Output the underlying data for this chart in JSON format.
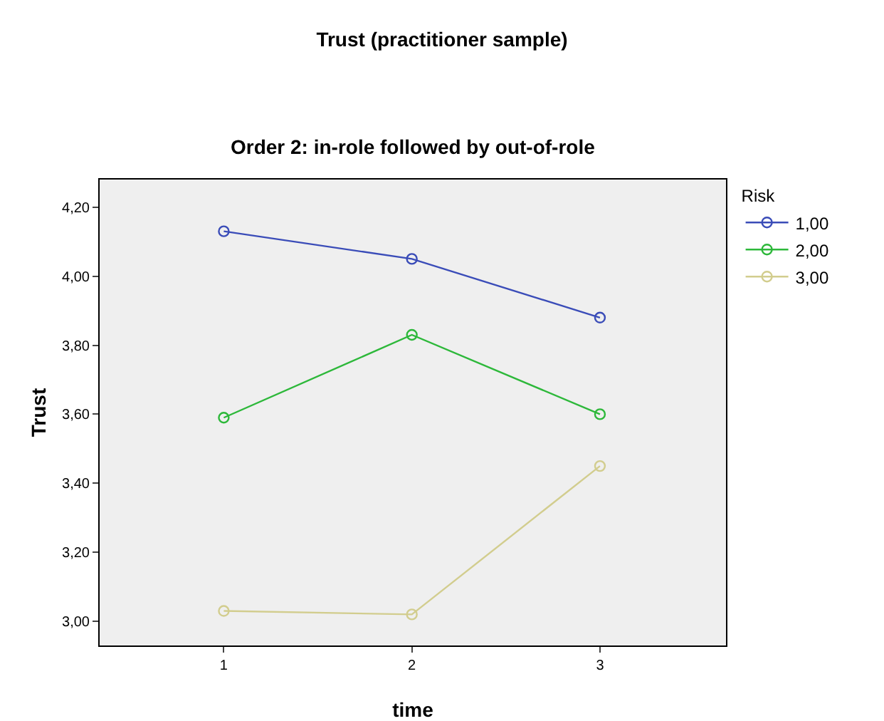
{
  "chart_data": {
    "type": "line",
    "title": "Trust (practitioner sample)",
    "subtitle": "Order 2: in-role followed by out-of-role",
    "xlabel": "time",
    "ylabel": "Trust",
    "legend_title": "Risk",
    "x": [
      1,
      2,
      3
    ],
    "series": [
      {
        "name": "1,00",
        "color": "#3a4cb8",
        "values": [
          4.13,
          4.05,
          3.88
        ]
      },
      {
        "name": "2,00",
        "color": "#2db83a",
        "values": [
          3.59,
          3.83,
          3.6
        ]
      },
      {
        "name": "3,00",
        "color": "#d2cd8e",
        "values": [
          3.03,
          3.02,
          3.45
        ]
      }
    ],
    "xlim": [
      0.34,
      3.67
    ],
    "xticks": [
      1,
      2,
      3
    ],
    "ylim": [
      2.93,
      4.28
    ],
    "yticks": [
      {
        "value": 3.0,
        "label": "3,00"
      },
      {
        "value": 3.2,
        "label": "3,20"
      },
      {
        "value": 3.4,
        "label": "3,40"
      },
      {
        "value": 3.6,
        "label": "3,60"
      },
      {
        "value": 3.8,
        "label": "3,80"
      },
      {
        "value": 4.0,
        "label": "4,00"
      },
      {
        "value": 4.2,
        "label": "4,20"
      }
    ],
    "grid": false,
    "legend": "top right",
    "marker": "circle",
    "line_style": "solid"
  }
}
